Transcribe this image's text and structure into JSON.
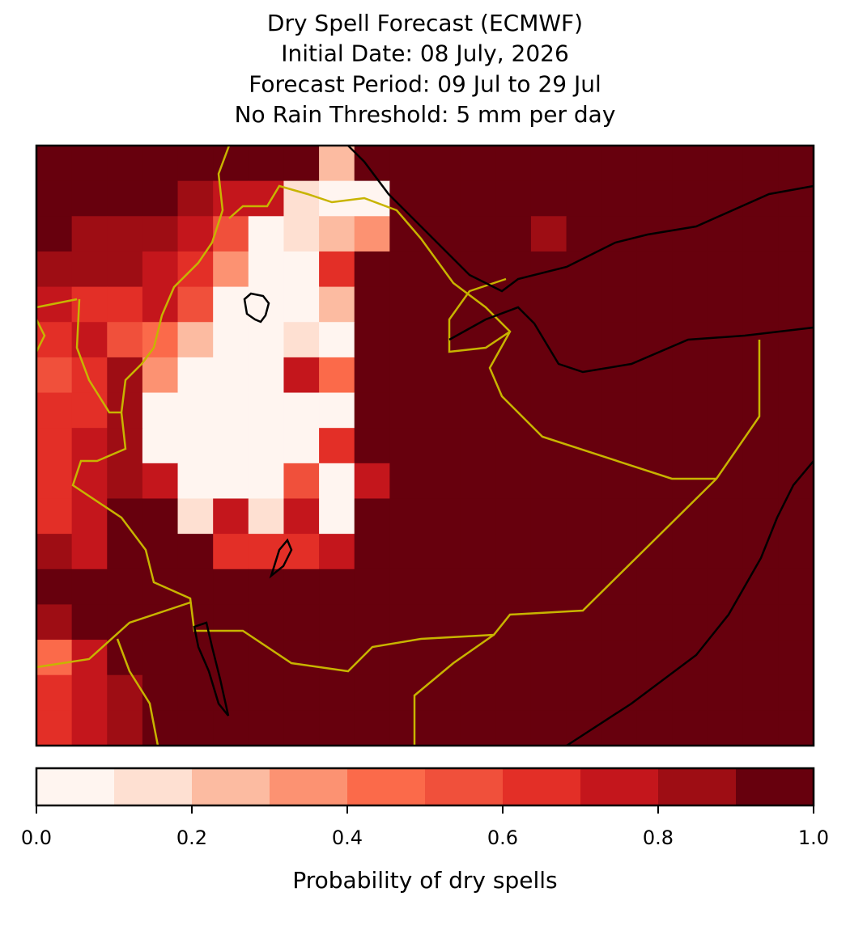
{
  "chart_data": {
    "type": "heatmap",
    "title": [
      "Dry Spell Forecast (ECMWF)",
      "Initial Date: 08 July, 2026",
      "Forecast Period: 09 Jul to 29 Jul",
      "No Rain Threshold: 5 mm per day"
    ],
    "colorbar_label": "Probability of dry spells",
    "levels": [
      0,
      0.1,
      0.2,
      0.3,
      0.4,
      0.5,
      0.6,
      0.7,
      0.8,
      0.9,
      1
    ],
    "colors": [
      "#fff5f0",
      "#fee0d2",
      "#fcbba1",
      "#fc9272",
      "#fb6a4a",
      "#f0503b",
      "#e32f27",
      "#c4161c",
      "#9e0d14",
      "#67000d"
    ],
    "cticks": [
      {
        "value": 0,
        "label": "0.0"
      },
      0.2,
      0.4,
      0.6,
      0.8,
      {
        "value": 1,
        "label": "1.0"
      }
    ],
    "values": [
      [
        0.95,
        0.95,
        0.95,
        0.95,
        0.95,
        0.95,
        0.95,
        0.95,
        0.25,
        0.95,
        0.95,
        0.95,
        0.95,
        0.95,
        0.95,
        0.95,
        0.95,
        0.95,
        0.95,
        0.95,
        0.95,
        0.95
      ],
      [
        0.95,
        0.95,
        0.95,
        0.95,
        0.85,
        0.75,
        0.75,
        0.15,
        0.05,
        0.05,
        0.95,
        0.95,
        0.95,
        0.95,
        0.95,
        0.95,
        0.95,
        0.95,
        0.95,
        0.95,
        0.95,
        0.95
      ],
      [
        0.95,
        0.85,
        0.85,
        0.85,
        0.75,
        0.55,
        0.05,
        0.15,
        0.25,
        0.35,
        0.95,
        0.95,
        0.95,
        0.95,
        0.85,
        0.95,
        0.95,
        0.95,
        0.95,
        0.95,
        0.95,
        0.95
      ],
      [
        0.85,
        0.85,
        0.85,
        0.75,
        0.65,
        0.35,
        0.05,
        0.05,
        0.65,
        0.95,
        0.95,
        0.95,
        0.95,
        0.95,
        0.95,
        0.95,
        0.95,
        0.95,
        0.95,
        0.95,
        0.95,
        0.95
      ],
      [
        0.75,
        0.65,
        0.65,
        0.75,
        0.55,
        0.05,
        0.05,
        0.05,
        0.25,
        0.95,
        0.95,
        0.95,
        0.95,
        0.95,
        0.95,
        0.95,
        0.95,
        0.95,
        0.95,
        0.95,
        0.95,
        0.95
      ],
      [
        0.65,
        0.75,
        0.55,
        0.45,
        0.25,
        0.05,
        0.05,
        0.15,
        0.05,
        0.95,
        0.95,
        0.95,
        0.95,
        0.95,
        0.95,
        0.95,
        0.95,
        0.95,
        0.95,
        0.95,
        0.95,
        0.95
      ],
      [
        0.55,
        0.65,
        0.85,
        0.35,
        0.05,
        0.05,
        0.05,
        0.75,
        0.45,
        0.95,
        0.95,
        0.95,
        0.95,
        0.95,
        0.95,
        0.95,
        0.95,
        0.95,
        0.95,
        0.95,
        0.95,
        0.95
      ],
      [
        0.65,
        0.65,
        0.85,
        0.05,
        0.05,
        0.05,
        0.05,
        0.05,
        0.05,
        0.95,
        0.95,
        0.95,
        0.95,
        0.95,
        0.95,
        0.95,
        0.95,
        0.95,
        0.95,
        0.95,
        0.95,
        0.95
      ],
      [
        0.65,
        0.75,
        0.85,
        0.05,
        0.05,
        0.05,
        0.05,
        0.05,
        0.65,
        0.95,
        0.95,
        0.95,
        0.95,
        0.95,
        0.95,
        0.95,
        0.95,
        0.95,
        0.95,
        0.95,
        0.95,
        0.95
      ],
      [
        0.65,
        0.75,
        0.85,
        0.75,
        0.05,
        0.05,
        0.05,
        0.55,
        0.05,
        0.75,
        0.95,
        0.95,
        0.95,
        0.95,
        0.95,
        0.95,
        0.95,
        0.95,
        0.95,
        0.95,
        0.95,
        0.95
      ],
      [
        0.65,
        0.75,
        0.95,
        0.95,
        0.15,
        0.75,
        0.15,
        0.75,
        0.05,
        0.95,
        0.95,
        0.95,
        0.95,
        0.95,
        0.95,
        0.95,
        0.95,
        0.95,
        0.95,
        0.95,
        0.95,
        0.95
      ],
      [
        0.85,
        0.75,
        0.95,
        0.95,
        0.95,
        0.65,
        0.65,
        0.65,
        0.75,
        0.95,
        0.95,
        0.95,
        0.95,
        0.95,
        0.95,
        0.95,
        0.95,
        0.95,
        0.95,
        0.95,
        0.95,
        0.95
      ],
      [
        0.95,
        0.95,
        0.95,
        0.95,
        0.95,
        0.95,
        0.95,
        0.95,
        0.95,
        0.95,
        0.95,
        0.95,
        0.95,
        0.95,
        0.95,
        0.95,
        0.95,
        0.95,
        0.95,
        0.95,
        0.95,
        0.95
      ],
      [
        0.85,
        0.95,
        0.95,
        0.95,
        0.95,
        0.95,
        0.95,
        0.95,
        0.95,
        0.95,
        0.95,
        0.95,
        0.95,
        0.95,
        0.95,
        0.95,
        0.95,
        0.95,
        0.95,
        0.95,
        0.95,
        0.95
      ],
      [
        0.45,
        0.75,
        0.95,
        0.95,
        0.95,
        0.95,
        0.95,
        0.95,
        0.95,
        0.95,
        0.95,
        0.95,
        0.95,
        0.95,
        0.95,
        0.95,
        0.95,
        0.95,
        0.95,
        0.95,
        0.95,
        0.95
      ],
      [
        0.65,
        0.75,
        0.85,
        0.95,
        0.95,
        0.95,
        0.95,
        0.95,
        0.95,
        0.95,
        0.95,
        0.95,
        0.95,
        0.95,
        0.95,
        0.95,
        0.95,
        0.95,
        0.95,
        0.95,
        0.95,
        0.95
      ],
      [
        0.65,
        0.75,
        0.85,
        0.95,
        0.95,
        0.95,
        0.95,
        0.95,
        0.95,
        0.95,
        0.95,
        0.95,
        0.95,
        0.95,
        0.95,
        0.95,
        0.95,
        0.95,
        0.95,
        0.95,
        0.95,
        0.95
      ]
    ]
  }
}
